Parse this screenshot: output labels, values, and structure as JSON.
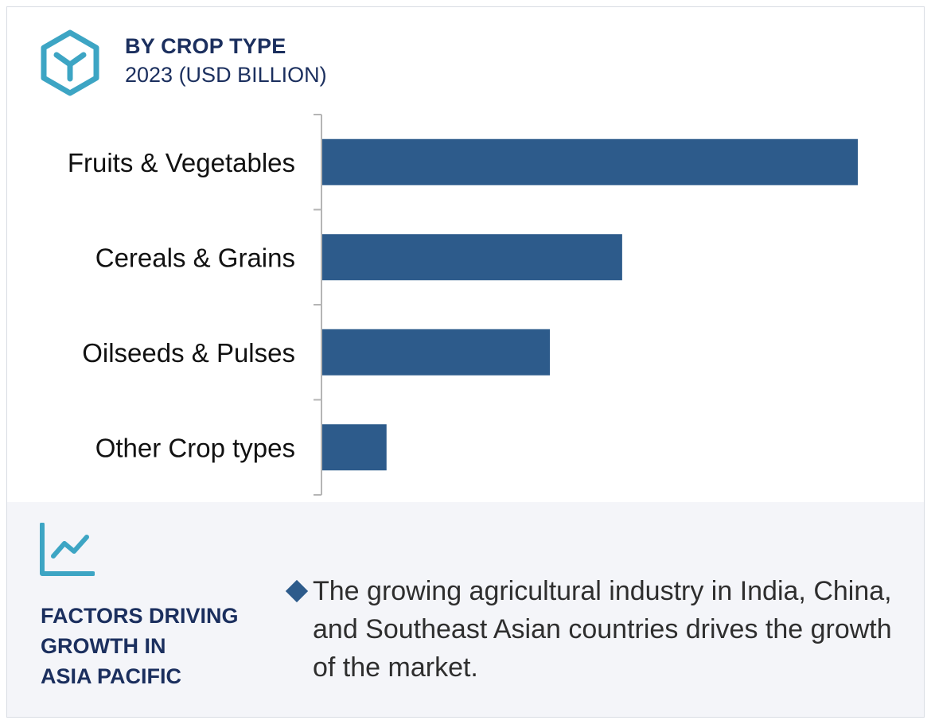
{
  "header": {
    "title": "BY CROP TYPE",
    "subtitle": "2023 (USD BILLION)",
    "icon": "cube-hexagon-icon",
    "accent_color": "#3da5c4"
  },
  "chart_data": {
    "type": "bar",
    "orientation": "horizontal",
    "title": "BY CROP TYPE",
    "subtitle": "2023 (USD BILLION)",
    "categories": [
      "Fruits & Vegetables",
      "Cereals & Grains",
      "Oilseeds & Pulses",
      "Other Crop types"
    ],
    "values": [
      100,
      56,
      42.5,
      12
    ],
    "xlim": [
      0,
      100
    ],
    "bar_color": "#2d5b8b",
    "grid": false,
    "legend": "none"
  },
  "factors": {
    "icon": "line-chart-icon",
    "title": "FACTORS DRIVING\nGROWTH IN\nASIA PACIFIC",
    "text": "The growing agricultural industry in India, China, and Southeast Asian countries drives the growth of the market.",
    "bullet_color": "#2d5b8b"
  }
}
